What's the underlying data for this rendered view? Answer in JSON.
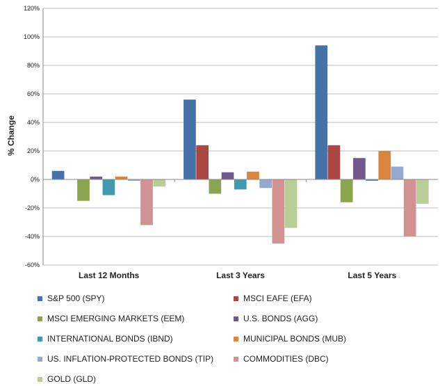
{
  "chart_data": {
    "type": "bar",
    "ylabel": "% Change",
    "ylim": [
      -60,
      120
    ],
    "yticks": [
      "-60%",
      "-40%",
      "-20%",
      "0%",
      "20%",
      "40%",
      "60%",
      "80%",
      "100%",
      "120%"
    ],
    "ytick_values": [
      -60,
      -40,
      -20,
      0,
      20,
      40,
      60,
      80,
      100,
      120
    ],
    "categories": [
      "Last 12 Months",
      "Last 3 Years",
      "Last 5 Years"
    ],
    "grid": true,
    "legend_position": "bottom",
    "series": [
      {
        "name": "S&P 500   (SPY)",
        "color": "#4572A7",
        "values": [
          6,
          56,
          94
        ]
      },
      {
        "name": "MSCI EAFE   (EFA)",
        "color": "#AA4643",
        "values": [
          0,
          24,
          24
        ]
      },
      {
        "name": "MSCI EMERGING MARKETS   (EEM)",
        "color": "#89A54E",
        "values": [
          -15,
          -10,
          -16
        ]
      },
      {
        "name": "U.S. BONDS (AGG)",
        "color": "#71588F",
        "values": [
          2,
          5,
          15
        ]
      },
      {
        "name": "INTERNATIONAL BONDS   (IBND)",
        "color": "#4198AF",
        "values": [
          -11,
          -7,
          -1
        ]
      },
      {
        "name": "MUNICIPAL BONDS   (MUB)",
        "color": "#DB843D",
        "values": [
          2,
          5.5,
          20
        ]
      },
      {
        "name": "US. INFLATION-PROTECTED BONDS  (TIP)",
        "color": "#93A9CF",
        "values": [
          -1,
          -6,
          9
        ]
      },
      {
        "name": "COMMODITIES   (DBC)",
        "color": "#D19392",
        "values": [
          -32,
          -45,
          -40
        ]
      },
      {
        "name": "GOLD   (GLD)",
        "color": "#B9CD96",
        "values": [
          -5,
          -34,
          -17
        ]
      }
    ]
  }
}
